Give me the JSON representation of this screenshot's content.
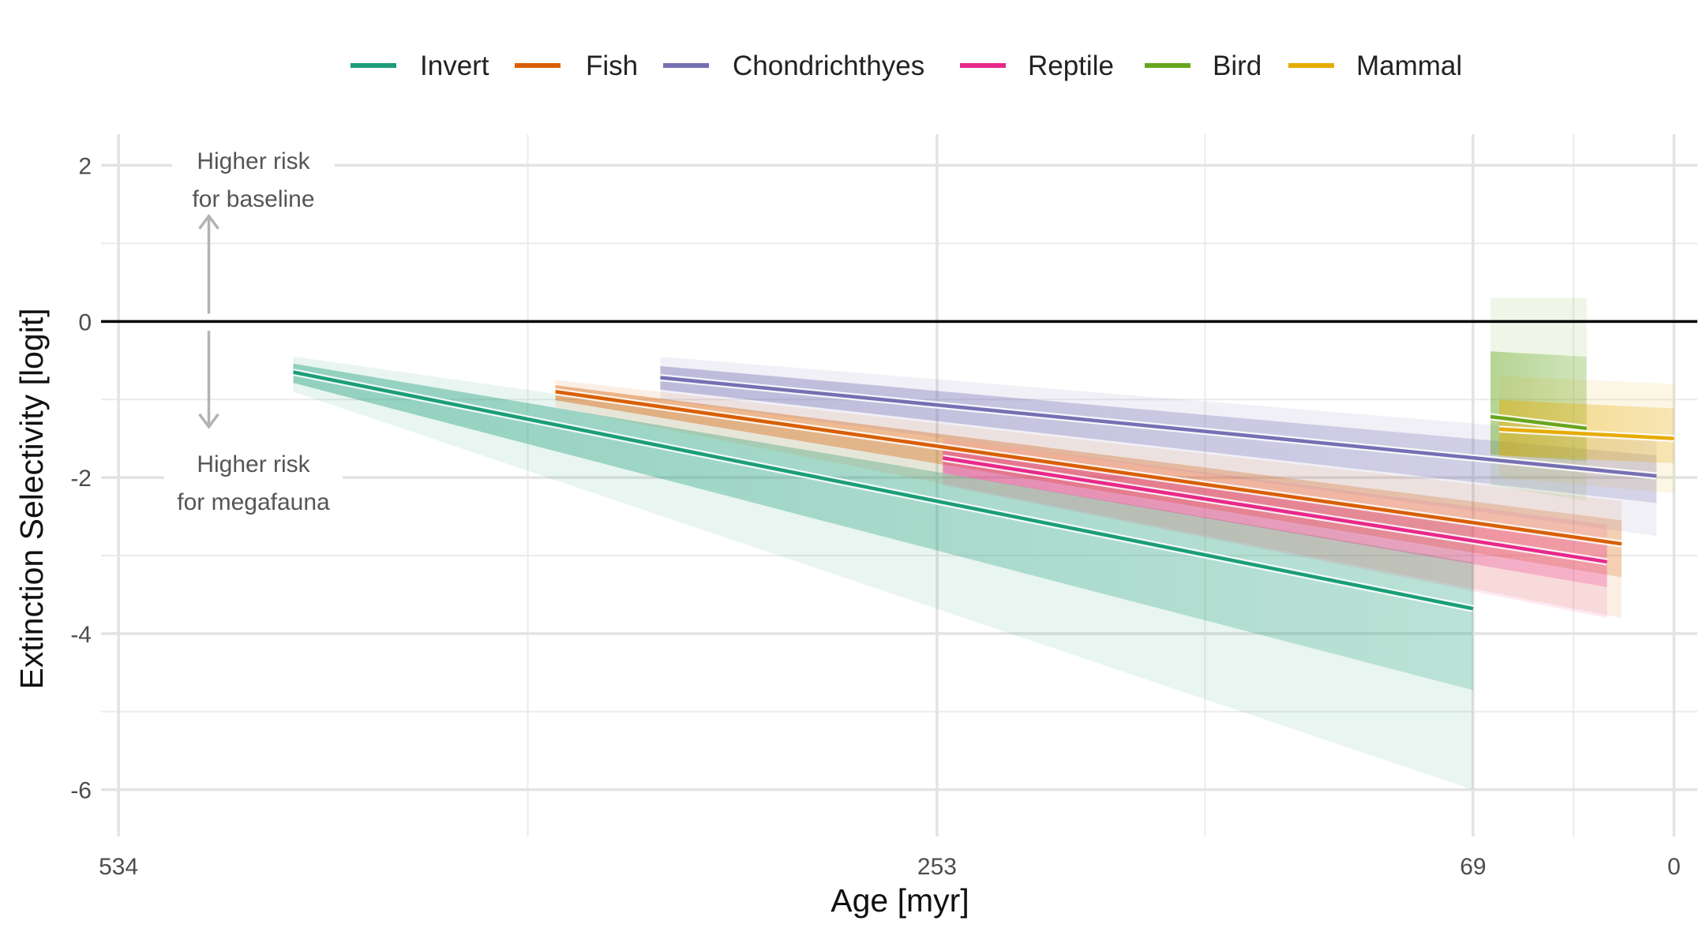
{
  "chart_data": {
    "type": "line",
    "title": "",
    "xlabel": "Age [myr]",
    "ylabel": "Extinction Selectivity [logit]",
    "x_reversed": true,
    "xlim": [
      540,
      -8
    ],
    "ylim": [
      -6.6,
      2.4
    ],
    "x_ticks": [
      {
        "value": 534,
        "label": "534"
      },
      {
        "value": 253,
        "label": "253"
      },
      {
        "value": 69,
        "label": "69"
      },
      {
        "value": 0,
        "label": "0"
      }
    ],
    "x_minor_gridlines": [
      393.5,
      161,
      34.5
    ],
    "y_ticks": [
      {
        "value": 2,
        "label": "2"
      },
      {
        "value": 0,
        "label": "0"
      },
      {
        "value": -2,
        "label": "-2"
      },
      {
        "value": -4,
        "label": "-4"
      },
      {
        "value": -6,
        "label": "-6"
      }
    ],
    "y_minor_gridlines": [
      1,
      -1,
      -3,
      -5
    ],
    "reference_line_y": 0,
    "grid": true,
    "legend_position": "top",
    "series": [
      {
        "name": "Invert",
        "color": "#1b9e77",
        "x": [
          474,
          69
        ],
        "y": [
          -0.65,
          -3.68
        ],
        "band_y_start": [
          -0.45,
          -0.9
        ],
        "band_y_end": [
          -2.6,
          -6.0
        ]
      },
      {
        "name": "Fish",
        "color": "#d95f02",
        "x": [
          384,
          18
        ],
        "y": [
          -0.9,
          -2.85
        ],
        "band_y_start": [
          -0.75,
          -1.1
        ],
        "band_y_end": [
          -2.3,
          -3.8
        ]
      },
      {
        "name": "Chondrichthyes",
        "color": "#7570b3",
        "x": [
          348,
          6
        ],
        "y": [
          -0.72,
          -1.98
        ],
        "band_y_start": [
          -0.45,
          -1.0
        ],
        "band_y_end": [
          -1.5,
          -2.75
        ]
      },
      {
        "name": "Reptile",
        "color": "#e7298a",
        "x": [
          251,
          23
        ],
        "y": [
          -1.75,
          -3.08
        ],
        "band_y_start": [
          -1.5,
          -2.1
        ],
        "band_y_end": [
          -2.6,
          -3.8
        ]
      },
      {
        "name": "Bird",
        "color": "#66a61e",
        "x": [
          63,
          30
        ],
        "y": [
          -1.22,
          -1.37
        ],
        "band_y_start": [
          0.3,
          -2.1
        ],
        "band_y_end": [
          0.3,
          -2.3
        ]
      },
      {
        "name": "Mammal",
        "color": "#e6ab02",
        "x": [
          60,
          0
        ],
        "y": [
          -1.38,
          -1.5
        ],
        "band_y_start": [
          -0.7,
          -2.0
        ],
        "band_y_end": [
          -0.8,
          -2.2
        ]
      }
    ]
  },
  "annotations": {
    "upper_line1": "Higher risk",
    "upper_line2": "for baseline",
    "lower_line1": "Higher risk",
    "lower_line2": "for megafauna",
    "arrow_x": 503,
    "arrow_upper_y": [
      0.1,
      1.35
    ],
    "arrow_lower_y": [
      -0.12,
      -1.35
    ]
  }
}
